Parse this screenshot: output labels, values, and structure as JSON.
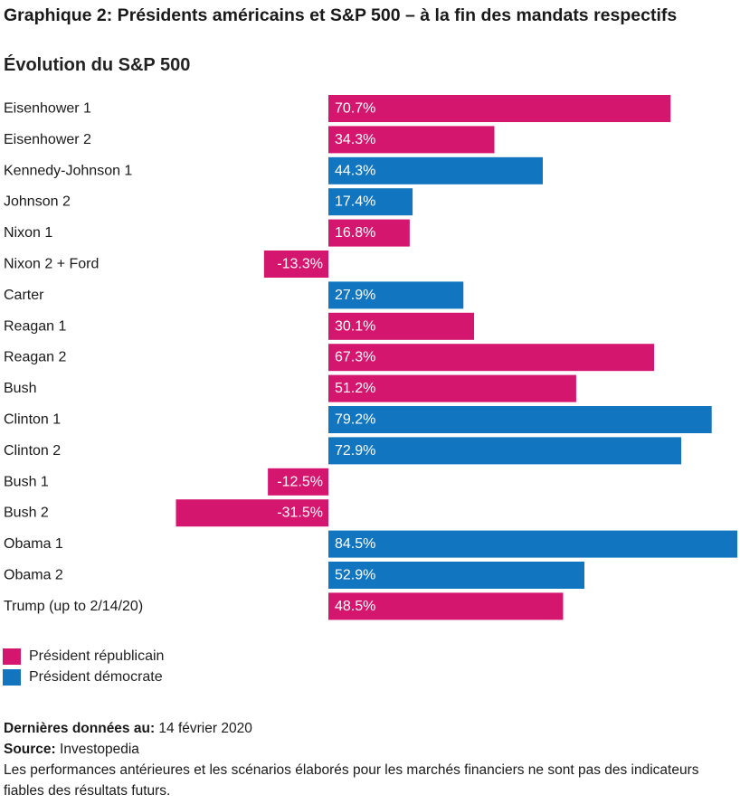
{
  "title": "Graphique 2: Présidents américains et S&P 500 – à la fin des mandats respectifs",
  "subtitle": "Évolution du S&P 500",
  "colors": {
    "republican": "#d4166e",
    "democrat": "#1275bf"
  },
  "legend": [
    {
      "label": "Président républicain",
      "party": "republican"
    },
    {
      "label": "Président démocrate",
      "party": "democrat"
    }
  ],
  "chart_data": {
    "type": "bar",
    "orientation": "horizontal",
    "title": "Graphique 2: Présidents américains et S&P 500 – à la fin des mandats respectifs",
    "subtitle": "Évolution du S&P 500",
    "xlim": [
      -31.5,
      84.5
    ],
    "grid": false,
    "legend_position": "bottom-left",
    "categories": [
      "Eisenhower 1",
      "Eisenhower 2",
      "Kennedy-Johnson 1",
      "Johnson 2",
      "Nixon 1",
      "Nixon 2 + Ford",
      "Carter",
      "Reagan 1",
      "Reagan 2",
      "Bush",
      "Clinton 1",
      "Clinton 2",
      "Bush 1",
      "Bush 2",
      "Obama 1",
      "Obama 2",
      "Trump (up to 2/14/20)"
    ],
    "values": [
      70.7,
      34.3,
      44.3,
      17.4,
      16.8,
      -13.3,
      27.9,
      30.1,
      67.3,
      51.2,
      79.2,
      72.9,
      -12.5,
      -31.5,
      84.5,
      52.9,
      48.5
    ],
    "labels": [
      "70.7%",
      "34.3%",
      "44.3%",
      "17.4%",
      "16.8%",
      "-13.3%",
      "27.9%",
      "30.1%",
      "67.3%",
      "51.2%",
      "79.2%",
      "72.9%",
      "-12.5%",
      "-31.5%",
      "84.5%",
      "52.9%",
      "48.5%"
    ],
    "party": [
      "republican",
      "republican",
      "democrat",
      "democrat",
      "republican",
      "republican",
      "democrat",
      "republican",
      "republican",
      "republican",
      "democrat",
      "democrat",
      "republican",
      "republican",
      "democrat",
      "democrat",
      "republican"
    ]
  },
  "footer": {
    "last_data_label": "Dernières données au:",
    "last_data_value": "14 février 2020",
    "source_label": "Source:",
    "source_value": "Investopedia",
    "disclaimer": "Les performances antérieures et les scénarios élaborés pour les marchés financiers ne sont pas des indicateurs fiables des résultats futurs."
  }
}
